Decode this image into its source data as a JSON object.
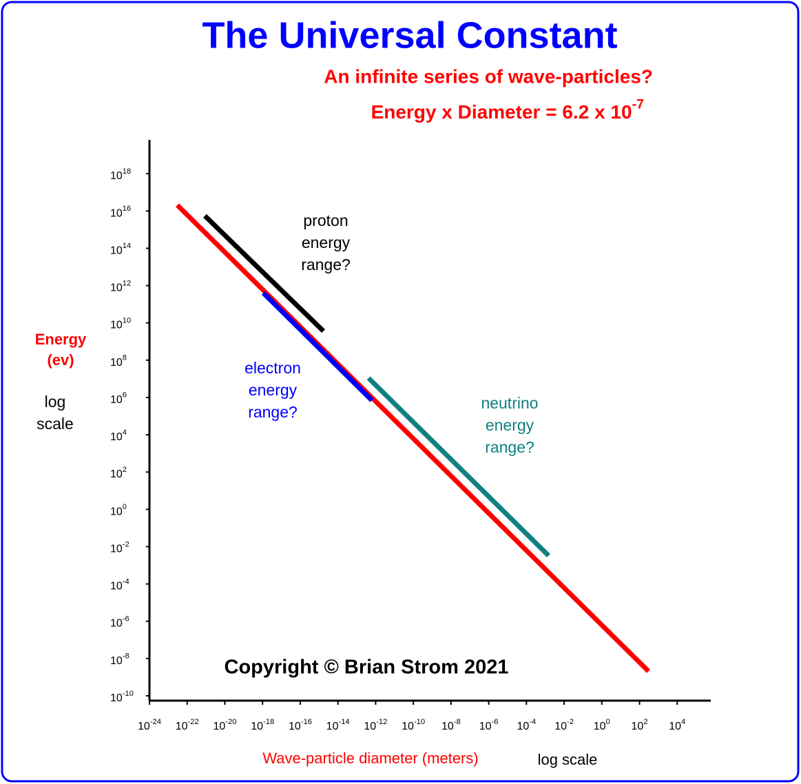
{
  "chart_data": {
    "type": "line",
    "title": "The Universal Constant",
    "subtitle": "An infinite series of wave-particles?",
    "formula": "Energy x Diameter =  6.2 x 10^-7",
    "ylabel": [
      "Energy",
      "(ev)"
    ],
    "yscale_label": [
      "log",
      "scale"
    ],
    "xlabel": "Wave-particle diameter (meters)",
    "xscale_label": "log scale",
    "copyright": "Copyright  ©   Brian Strom  2021",
    "log_x": true,
    "log_y": true,
    "xlim": [
      1e-24,
      1000000.0
    ],
    "ylim": [
      1e-10,
      1e+20
    ],
    "xticks": [
      {
        "value": 1e-24,
        "label": "10^-24"
      },
      {
        "value": 1e-22,
        "label": "10^-22"
      },
      {
        "value": 1e-20,
        "label": "10^-20"
      },
      {
        "value": 1e-18,
        "label": "10^-18"
      },
      {
        "value": 1e-16,
        "label": "10^-16"
      },
      {
        "value": 1e-14,
        "label": "10^-14"
      },
      {
        "value": 1e-12,
        "label": "10^-12"
      },
      {
        "value": 1e-10,
        "label": "10^-10"
      },
      {
        "value": 1e-08,
        "label": "10^-8"
      },
      {
        "value": 1e-06,
        "label": "10^-6"
      },
      {
        "value": 0.0001,
        "label": "10^-4"
      },
      {
        "value": 0.01,
        "label": "10^-2"
      },
      {
        "value": 1,
        "label": "10^0"
      },
      {
        "value": 100,
        "label": "10^2"
      },
      {
        "value": 10000,
        "label": "10^4"
      }
    ],
    "yticks": [
      {
        "value": 1e+18,
        "label": "10^18"
      },
      {
        "value": 1e+16,
        "label": "10^16"
      },
      {
        "value": 100000000000000.0,
        "label": "10^14"
      },
      {
        "value": 1000000000000.0,
        "label": "10^12"
      },
      {
        "value": 10000000000.0,
        "label": "10^10"
      },
      {
        "value": 100000000.0,
        "label": "10^8"
      },
      {
        "value": 1000000.0,
        "label": "10^6"
      },
      {
        "value": 10000.0,
        "label": "10^4"
      },
      {
        "value": 100,
        "label": "10^2"
      },
      {
        "value": 1,
        "label": "10^0"
      },
      {
        "value": 0.01,
        "label": "10^-2"
      },
      {
        "value": 0.0001,
        "label": "10^-4"
      },
      {
        "value": 1e-06,
        "label": "10^-6"
      },
      {
        "value": 1e-08,
        "label": "10^-8"
      },
      {
        "value": 1e-10,
        "label": "10^-10"
      }
    ],
    "series": [
      {
        "color": "#ff0000",
        "x": [
          3e-23,
          300
        ],
        "values": [
          2.07e+16,
          2.07e-09
        ]
      },
      {
        "color": "#000000",
        "x": [
          8.7e-22,
          1.7e-15
        ],
        "values": [
          5500000000000000.0,
          3600000000.0
        ]
      },
      {
        "color": "#0000ff",
        "x": [
          1.1e-18,
          6.3e-13
        ],
        "values": [
          400000000000.0,
          700000.0
        ]
      },
      {
        "color": "#108080",
        "x": [
          4.2e-13,
          0.0015
        ],
        "values": [
          11000000.0,
          0.0033
        ]
      }
    ],
    "annotations": [
      {
        "lines": [
          "proton",
          "energy",
          "range?"
        ],
        "color": "#000000"
      },
      {
        "lines": [
          "electron",
          "energy",
          "range?"
        ],
        "color": "#0000ff"
      },
      {
        "lines": [
          "neutrino",
          "energy",
          "range?"
        ],
        "color": "#108080"
      }
    ]
  }
}
